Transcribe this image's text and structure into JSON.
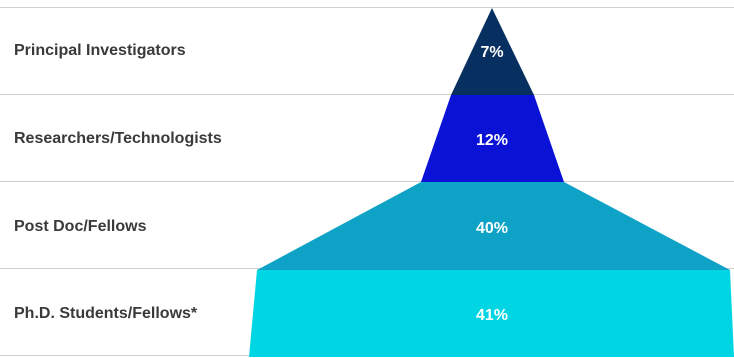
{
  "chart_data": {
    "type": "pyramid",
    "categories": [
      "Principal Investigators",
      "Researchers/Technologists",
      "Post Doc/Fellows",
      "Ph.D. Students/Fellows*"
    ],
    "values": [
      7,
      12,
      40,
      41
    ],
    "value_labels": [
      "7%",
      "12%",
      "40%",
      "41%"
    ],
    "colors": [
      "#072f5f",
      "#0a12d6",
      "#0ea3c6",
      "#00d6e3"
    ],
    "grid": true
  }
}
